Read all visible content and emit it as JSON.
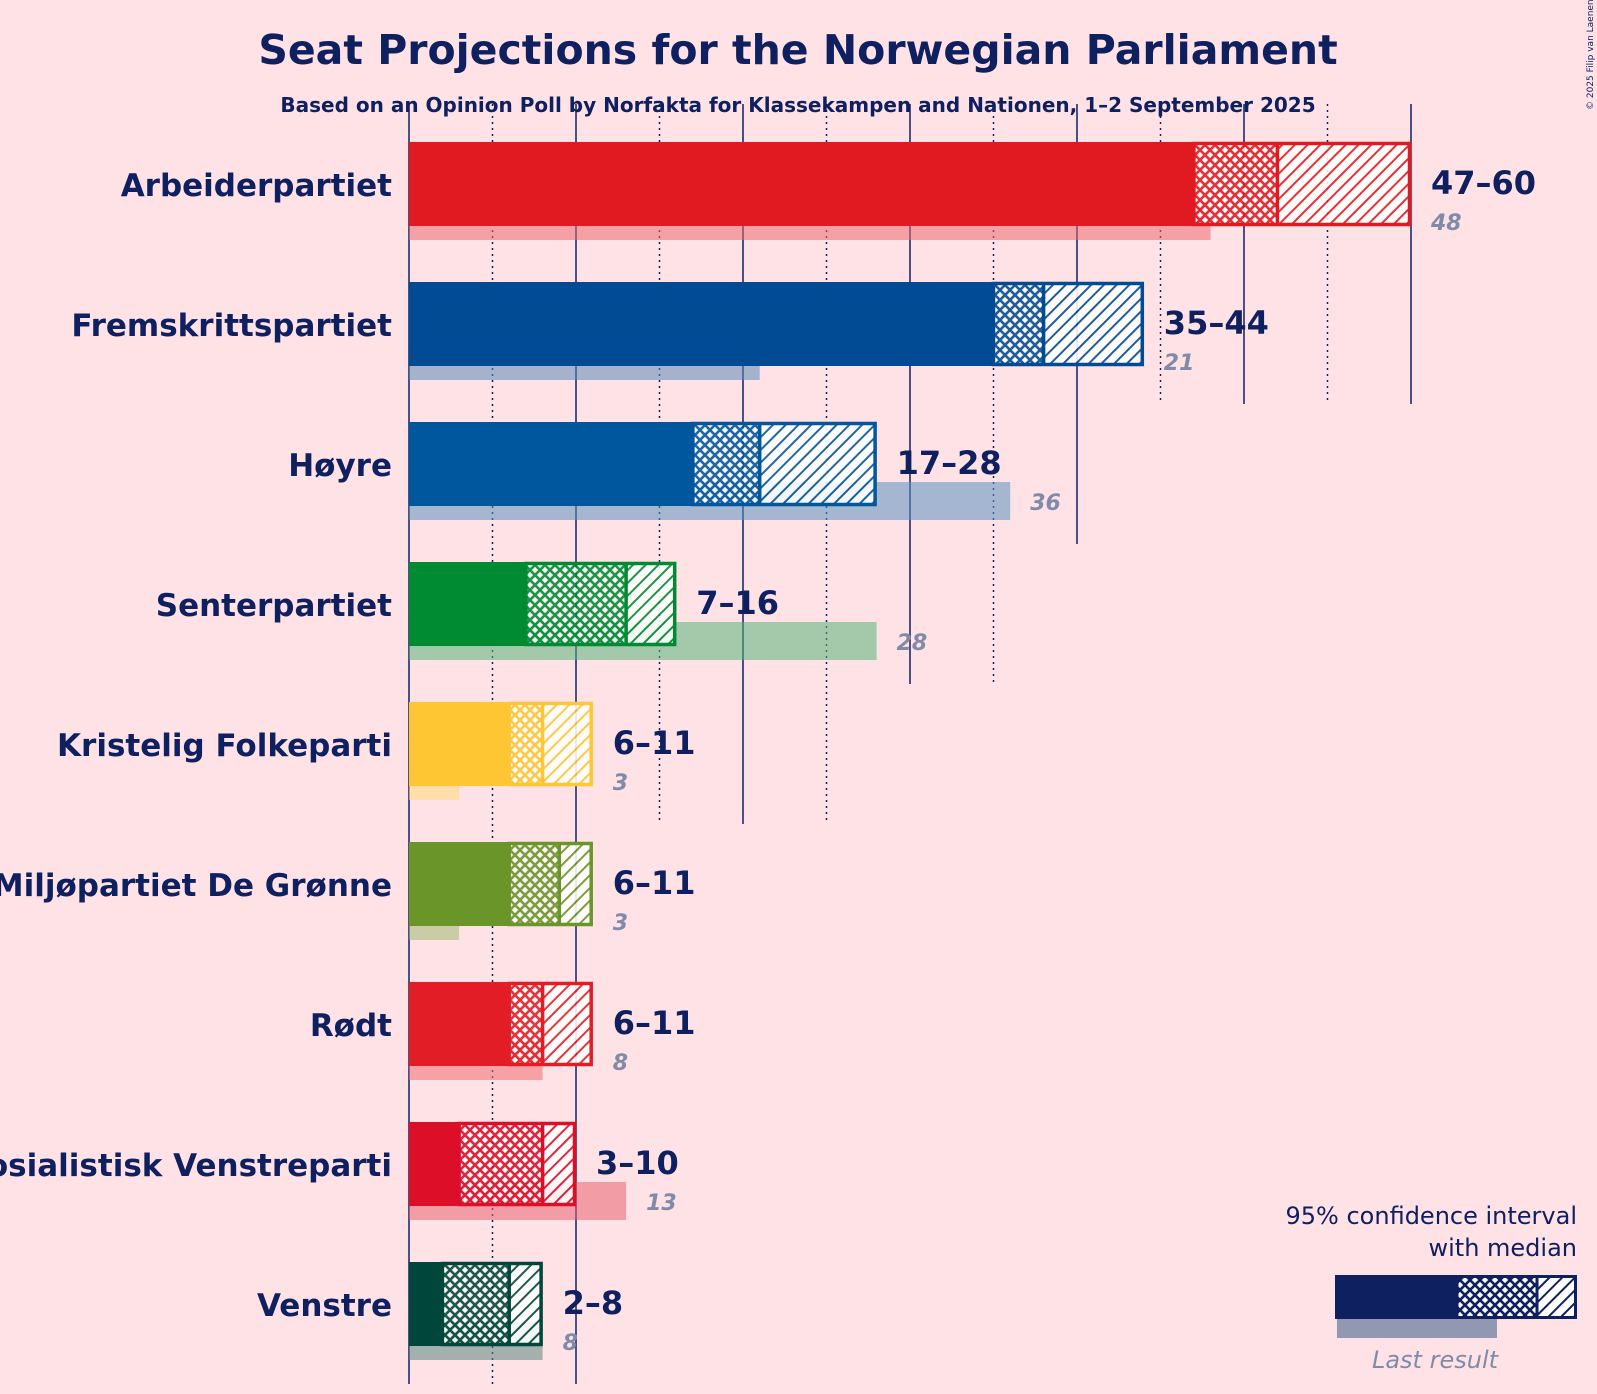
{
  "chart_data": {
    "type": "bar",
    "title": "Seat Projections for the Norwegian Parliament",
    "subtitle": "Based on an Opinion Poll by Norfakta for Klassekampen and Nationen, 1–2 September 2025",
    "copyright": "© 2025 Filip van Laenen",
    "xlim": [
      0,
      60
    ],
    "gridlines": [
      5,
      10,
      15,
      20,
      25,
      30,
      35,
      40,
      45,
      50,
      55,
      60
    ],
    "series": [
      {
        "name": "Arbeiderpartiet",
        "color": "#E11A22",
        "low": 47,
        "median": 52,
        "high": 60,
        "range_label": "47–60",
        "last": 48,
        "last_label": "48"
      },
      {
        "name": "Fremskrittspartiet",
        "color": "#004B93",
        "low": 35,
        "median": 38,
        "high": 44,
        "range_label": "35–44",
        "last": 21,
        "last_label": "21"
      },
      {
        "name": "Høyre",
        "color": "#00579E",
        "low": 17,
        "median": 21,
        "high": 28,
        "range_label": "17–28",
        "last": 36,
        "last_label": "36"
      },
      {
        "name": "Senterpartiet",
        "color": "#008A32",
        "low": 7,
        "median": 13,
        "high": 16,
        "range_label": "7–16",
        "last": 28,
        "last_label": "28"
      },
      {
        "name": "Kristelig Folkeparti",
        "color": "#FFC633",
        "low": 6,
        "median": 8,
        "high": 11,
        "range_label": "6–11",
        "last": 3,
        "last_label": "3"
      },
      {
        "name": "Miljøpartiet De Grønne",
        "color": "#6A9528",
        "low": 6,
        "median": 9,
        "high": 11,
        "range_label": "6–11",
        "last": 3,
        "last_label": "3"
      },
      {
        "name": "Rødt",
        "color": "#E21D26",
        "low": 6,
        "median": 8,
        "high": 11,
        "range_label": "6–11",
        "last": 8,
        "last_label": "8"
      },
      {
        "name": "Sosialistisk Venstreparti",
        "color": "#DC0E28",
        "low": 3,
        "median": 8,
        "high": 10,
        "range_label": "3–10",
        "last": 13,
        "last_label": "13"
      },
      {
        "name": "Venstre",
        "color": "#00463A",
        "low": 2,
        "median": 6,
        "high": 8,
        "range_label": "2–8",
        "last": 8,
        "last_label": "8"
      }
    ],
    "legend": {
      "line1": "95% confidence interval",
      "line2": "with median",
      "last_result": "Last result",
      "color": "#0F2060"
    }
  }
}
